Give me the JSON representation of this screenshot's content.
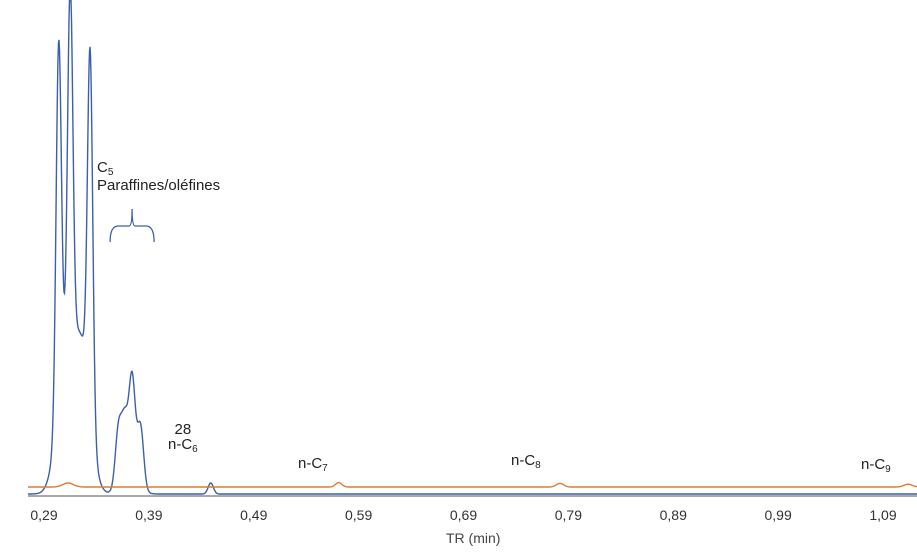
{
  "chart_data": {
    "type": "line",
    "xlabel": "TR (min)",
    "xlim": [
      0.27,
      1.15
    ],
    "ylim": [
      0,
      100
    ],
    "x_ticks": [
      "0,29",
      "0,39",
      "0,49",
      "0,59",
      "0,69",
      "0,79",
      "0,89",
      "0,99",
      "1,09"
    ],
    "x_tick_values": [
      0.29,
      0.39,
      0.49,
      0.59,
      0.69,
      0.79,
      0.89,
      0.99,
      1.09
    ],
    "colors": {
      "blue": "#3b5fad",
      "orange": "#e07b2a",
      "axis": "#555555"
    },
    "series": [
      {
        "color": "#3b5fad",
        "baseline": 0,
        "peaks": [
          {
            "x": 0.304,
            "height": 180,
            "width": 0.0025
          },
          {
            "x": 0.315,
            "height": 180,
            "width": 0.0025
          },
          {
            "x": 0.334,
            "height": 180,
            "width": 0.0025
          },
          {
            "x": 0.31,
            "height": 60,
            "width": 0.008
          },
          {
            "x": 0.326,
            "height": 70,
            "width": 0.008
          },
          {
            "x": 0.361,
            "height": 29,
            "width": 0.003
          },
          {
            "x": 0.367,
            "height": 29,
            "width": 0.003
          },
          {
            "x": 0.374,
            "height": 51,
            "width": 0.003
          },
          {
            "x": 0.382,
            "height": 31,
            "width": 0.003
          },
          {
            "x": 0.371,
            "height": 8,
            "width": 0.008
          },
          {
            "x": 0.449,
            "height": 5.5,
            "width": 0.0025
          }
        ]
      },
      {
        "color": "#e07b2a",
        "baseline": 2,
        "peaks": [
          {
            "x": 0.313,
            "height": 2,
            "width": 0.005
          },
          {
            "x": 0.571,
            "height": 2.2,
            "width": 0.003
          },
          {
            "x": 0.782,
            "height": 1.8,
            "width": 0.0035
          },
          {
            "x": 1.114,
            "height": 1.4,
            "width": 0.004
          }
        ]
      }
    ],
    "annotations": [
      {
        "id": "c5",
        "main": "C",
        "sub": "5",
        "line2": "Paraffines/oléfines",
        "x": 0.374
      },
      {
        "id": "c6",
        "top": "28",
        "main": "n-C",
        "sub": "6",
        "x": 0.449
      },
      {
        "id": "c7",
        "main": "n-C",
        "sub": "7",
        "x": 0.571
      },
      {
        "id": "c8",
        "main": "n-C",
        "sub": "8",
        "x": 0.782
      },
      {
        "id": "c9",
        "main": "n-C",
        "sub": "9",
        "x": 1.114
      }
    ]
  }
}
